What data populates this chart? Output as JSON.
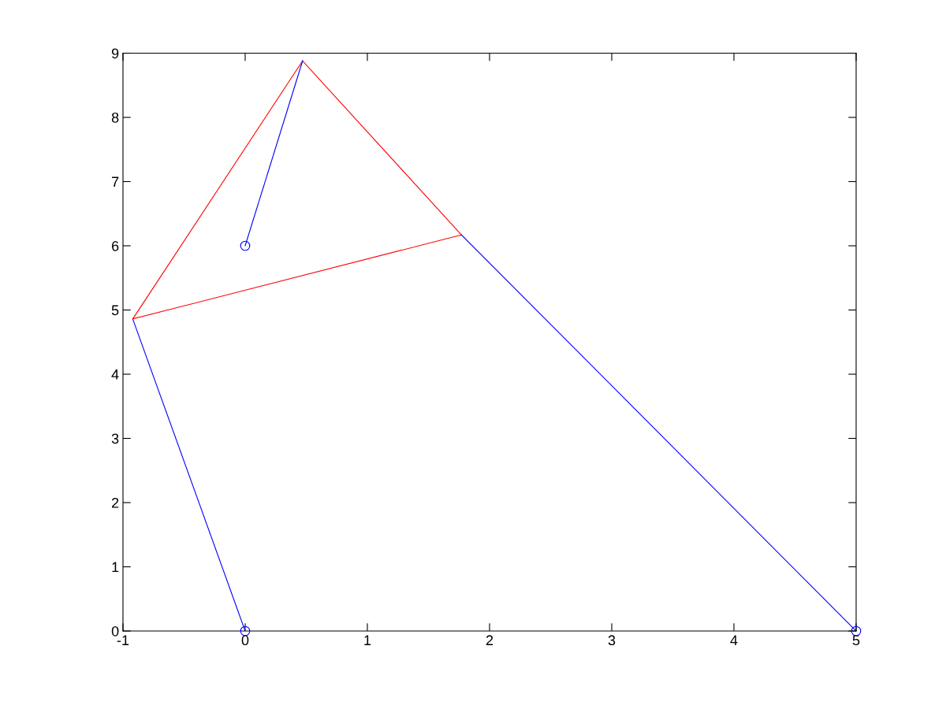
{
  "chart_data": {
    "type": "line",
    "xlim": [
      -1,
      5
    ],
    "ylim": [
      0,
      9
    ],
    "xticks": [
      -1,
      0,
      1,
      2,
      3,
      4,
      5
    ],
    "yticks": [
      0,
      1,
      2,
      3,
      4,
      5,
      6,
      7,
      8,
      9
    ],
    "grid": false,
    "legend": false,
    "marker": "none",
    "line_style": "solid",
    "series": [
      {
        "color": "#0000ff",
        "x": [
          0,
          -0.92
        ],
        "values": [
          0,
          4.86
        ]
      },
      {
        "color": "#ff0000",
        "x": [
          -0.92,
          0.47
        ],
        "values": [
          4.86,
          8.88
        ]
      },
      {
        "color": "#ff0000",
        "x": [
          0.47,
          1.77
        ],
        "values": [
          8.88,
          6.17
        ]
      },
      {
        "color": "#ff0000",
        "x": [
          -0.92,
          1.77
        ],
        "values": [
          4.86,
          6.17
        ]
      },
      {
        "color": "#0000ff",
        "x": [
          0,
          0.47
        ],
        "values": [
          6,
          8.88
        ]
      },
      {
        "color": "#0000ff",
        "x": [
          1.77,
          5
        ],
        "values": [
          6.17,
          0
        ]
      },
      {
        "type": "scatter",
        "marker": "circle",
        "color": "#0000ff",
        "x": [
          0,
          0,
          5
        ],
        "values": [
          0,
          6,
          0
        ]
      }
    ]
  }
}
